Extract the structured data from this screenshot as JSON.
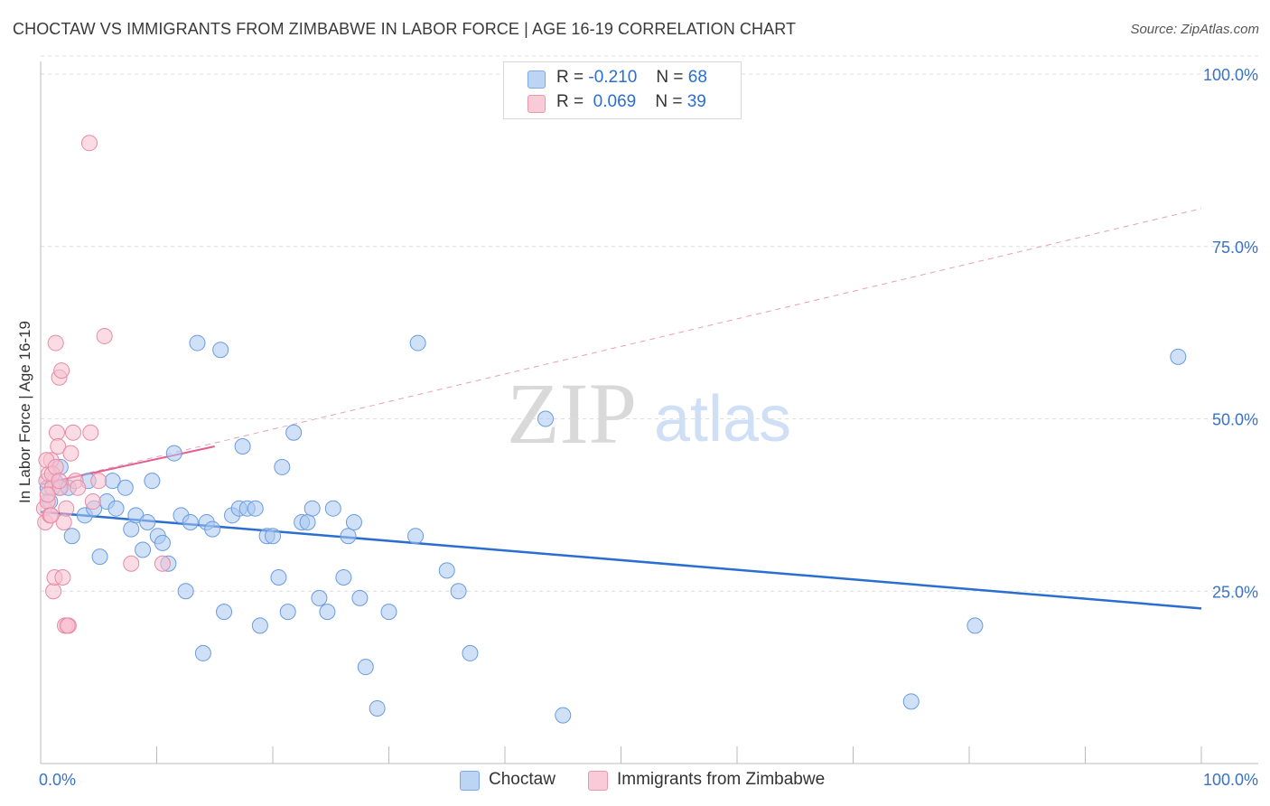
{
  "title": "CHOCTAW VS IMMIGRANTS FROM ZIMBABWE IN LABOR FORCE | AGE 16-19 CORRELATION CHART",
  "source": "Source: ZipAtlas.com",
  "watermark": {
    "zip": "ZIP",
    "atlas": "atlas"
  },
  "legend": {
    "r_label": "R =",
    "n_label": "N =",
    "series": [
      {
        "r": "-0.210",
        "n": "68"
      },
      {
        "r": "0.069",
        "n": "39"
      }
    ]
  },
  "chart_data": {
    "type": "scatter",
    "title": "CHOCTAW VS IMMIGRANTS FROM ZIMBABWE IN LABOR FORCE | AGE 16-19 CORRELATION CHART",
    "xlabel": "",
    "ylabel": "In Labor Force | Age 16-19",
    "xlim": [
      0,
      100
    ],
    "ylim": [
      0,
      105
    ],
    "x_tick_labels": [
      "0.0%",
      "100.0%"
    ],
    "y_ticks": [
      25,
      50,
      75,
      100
    ],
    "y_tick_labels": [
      "25.0%",
      "50.0%",
      "75.0%",
      "100.0%"
    ],
    "grid": true,
    "legend_position": "top-center",
    "series": [
      {
        "name": "Choctaw",
        "color": "#a9c8f0",
        "stroke": "#6a9be0",
        "trend": {
          "x": [
            0,
            100
          ],
          "y": [
            36.5,
            22.5
          ],
          "color": "#2a6fd0"
        },
        "points": [
          [
            0.8,
            38
          ],
          [
            1.2,
            41
          ],
          [
            1.6,
            40
          ],
          [
            1.7,
            43
          ],
          [
            2.4,
            40
          ],
          [
            2.7,
            33
          ],
          [
            3.8,
            36
          ],
          [
            4.1,
            41
          ],
          [
            4.6,
            37
          ],
          [
            5.1,
            30
          ],
          [
            5.7,
            38
          ],
          [
            6.2,
            41
          ],
          [
            6.5,
            37
          ],
          [
            7.3,
            40
          ],
          [
            7.8,
            34
          ],
          [
            8.2,
            36
          ],
          [
            8.8,
            31
          ],
          [
            9.2,
            35
          ],
          [
            9.6,
            41
          ],
          [
            10.1,
            33
          ],
          [
            10.5,
            32
          ],
          [
            11.0,
            29
          ],
          [
            11.5,
            45
          ],
          [
            12.1,
            36
          ],
          [
            12.5,
            25
          ],
          [
            12.9,
            35
          ],
          [
            13.5,
            61
          ],
          [
            14.0,
            16
          ],
          [
            14.3,
            35
          ],
          [
            14.8,
            34
          ],
          [
            15.5,
            60
          ],
          [
            15.8,
            22
          ],
          [
            16.5,
            36
          ],
          [
            17.1,
            37
          ],
          [
            17.4,
            46
          ],
          [
            17.8,
            37
          ],
          [
            18.5,
            37
          ],
          [
            18.9,
            20
          ],
          [
            19.5,
            33
          ],
          [
            20.0,
            33
          ],
          [
            20.5,
            27
          ],
          [
            20.8,
            43
          ],
          [
            21.3,
            22
          ],
          [
            21.8,
            48
          ],
          [
            22.5,
            35
          ],
          [
            23.0,
            35
          ],
          [
            23.4,
            37
          ],
          [
            24.0,
            24
          ],
          [
            24.7,
            22
          ],
          [
            25.2,
            37
          ],
          [
            26.1,
            27
          ],
          [
            26.5,
            33
          ],
          [
            27.0,
            35
          ],
          [
            27.5,
            24
          ],
          [
            28.0,
            14
          ],
          [
            29.0,
            8
          ],
          [
            30.0,
            22
          ],
          [
            32.5,
            61
          ],
          [
            32.3,
            33
          ],
          [
            35.0,
            28
          ],
          [
            36.0,
            25
          ],
          [
            37.0,
            16
          ],
          [
            43.5,
            50
          ],
          [
            45.0,
            7
          ],
          [
            75.0,
            9
          ],
          [
            80.5,
            20
          ],
          [
            98.0,
            59
          ],
          [
            0.6,
            40
          ]
        ]
      },
      {
        "name": "Immigrants from Zimbabwe",
        "color": "#f7c0cf",
        "stroke": "#e88aa4",
        "trend_solid": {
          "x": [
            0,
            15
          ],
          "y": [
            40.5,
            46
          ],
          "color": "#e06090"
        },
        "trend_dashed": {
          "x": [
            0,
            100
          ],
          "y": [
            40.5,
            80.5
          ],
          "color": "#e8a0b8"
        },
        "points": [
          [
            0.3,
            37
          ],
          [
            0.4,
            35
          ],
          [
            0.5,
            41
          ],
          [
            0.6,
            38
          ],
          [
            0.7,
            42
          ],
          [
            0.8,
            36
          ],
          [
            0.9,
            44
          ],
          [
            1.0,
            40
          ],
          [
            1.1,
            25
          ],
          [
            1.2,
            27
          ],
          [
            1.3,
            61
          ],
          [
            1.4,
            48
          ],
          [
            1.5,
            46
          ],
          [
            1.6,
            56
          ],
          [
            1.7,
            40
          ],
          [
            1.8,
            57
          ],
          [
            1.9,
            27
          ],
          [
            2.0,
            35
          ],
          [
            2.1,
            20
          ],
          [
            2.2,
            37
          ],
          [
            2.4,
            20
          ],
          [
            2.6,
            45
          ],
          [
            2.8,
            48
          ],
          [
            3.0,
            41
          ],
          [
            3.2,
            40
          ],
          [
            4.2,
            90
          ],
          [
            4.3,
            48
          ],
          [
            4.5,
            38
          ],
          [
            5.0,
            41
          ],
          [
            5.5,
            62
          ],
          [
            7.8,
            29
          ],
          [
            10.5,
            29
          ],
          [
            0.5,
            44
          ],
          [
            0.6,
            39
          ],
          [
            0.9,
            36
          ],
          [
            1.0,
            42
          ],
          [
            1.3,
            43
          ],
          [
            1.6,
            41
          ],
          [
            2.3,
            20
          ]
        ]
      }
    ]
  }
}
